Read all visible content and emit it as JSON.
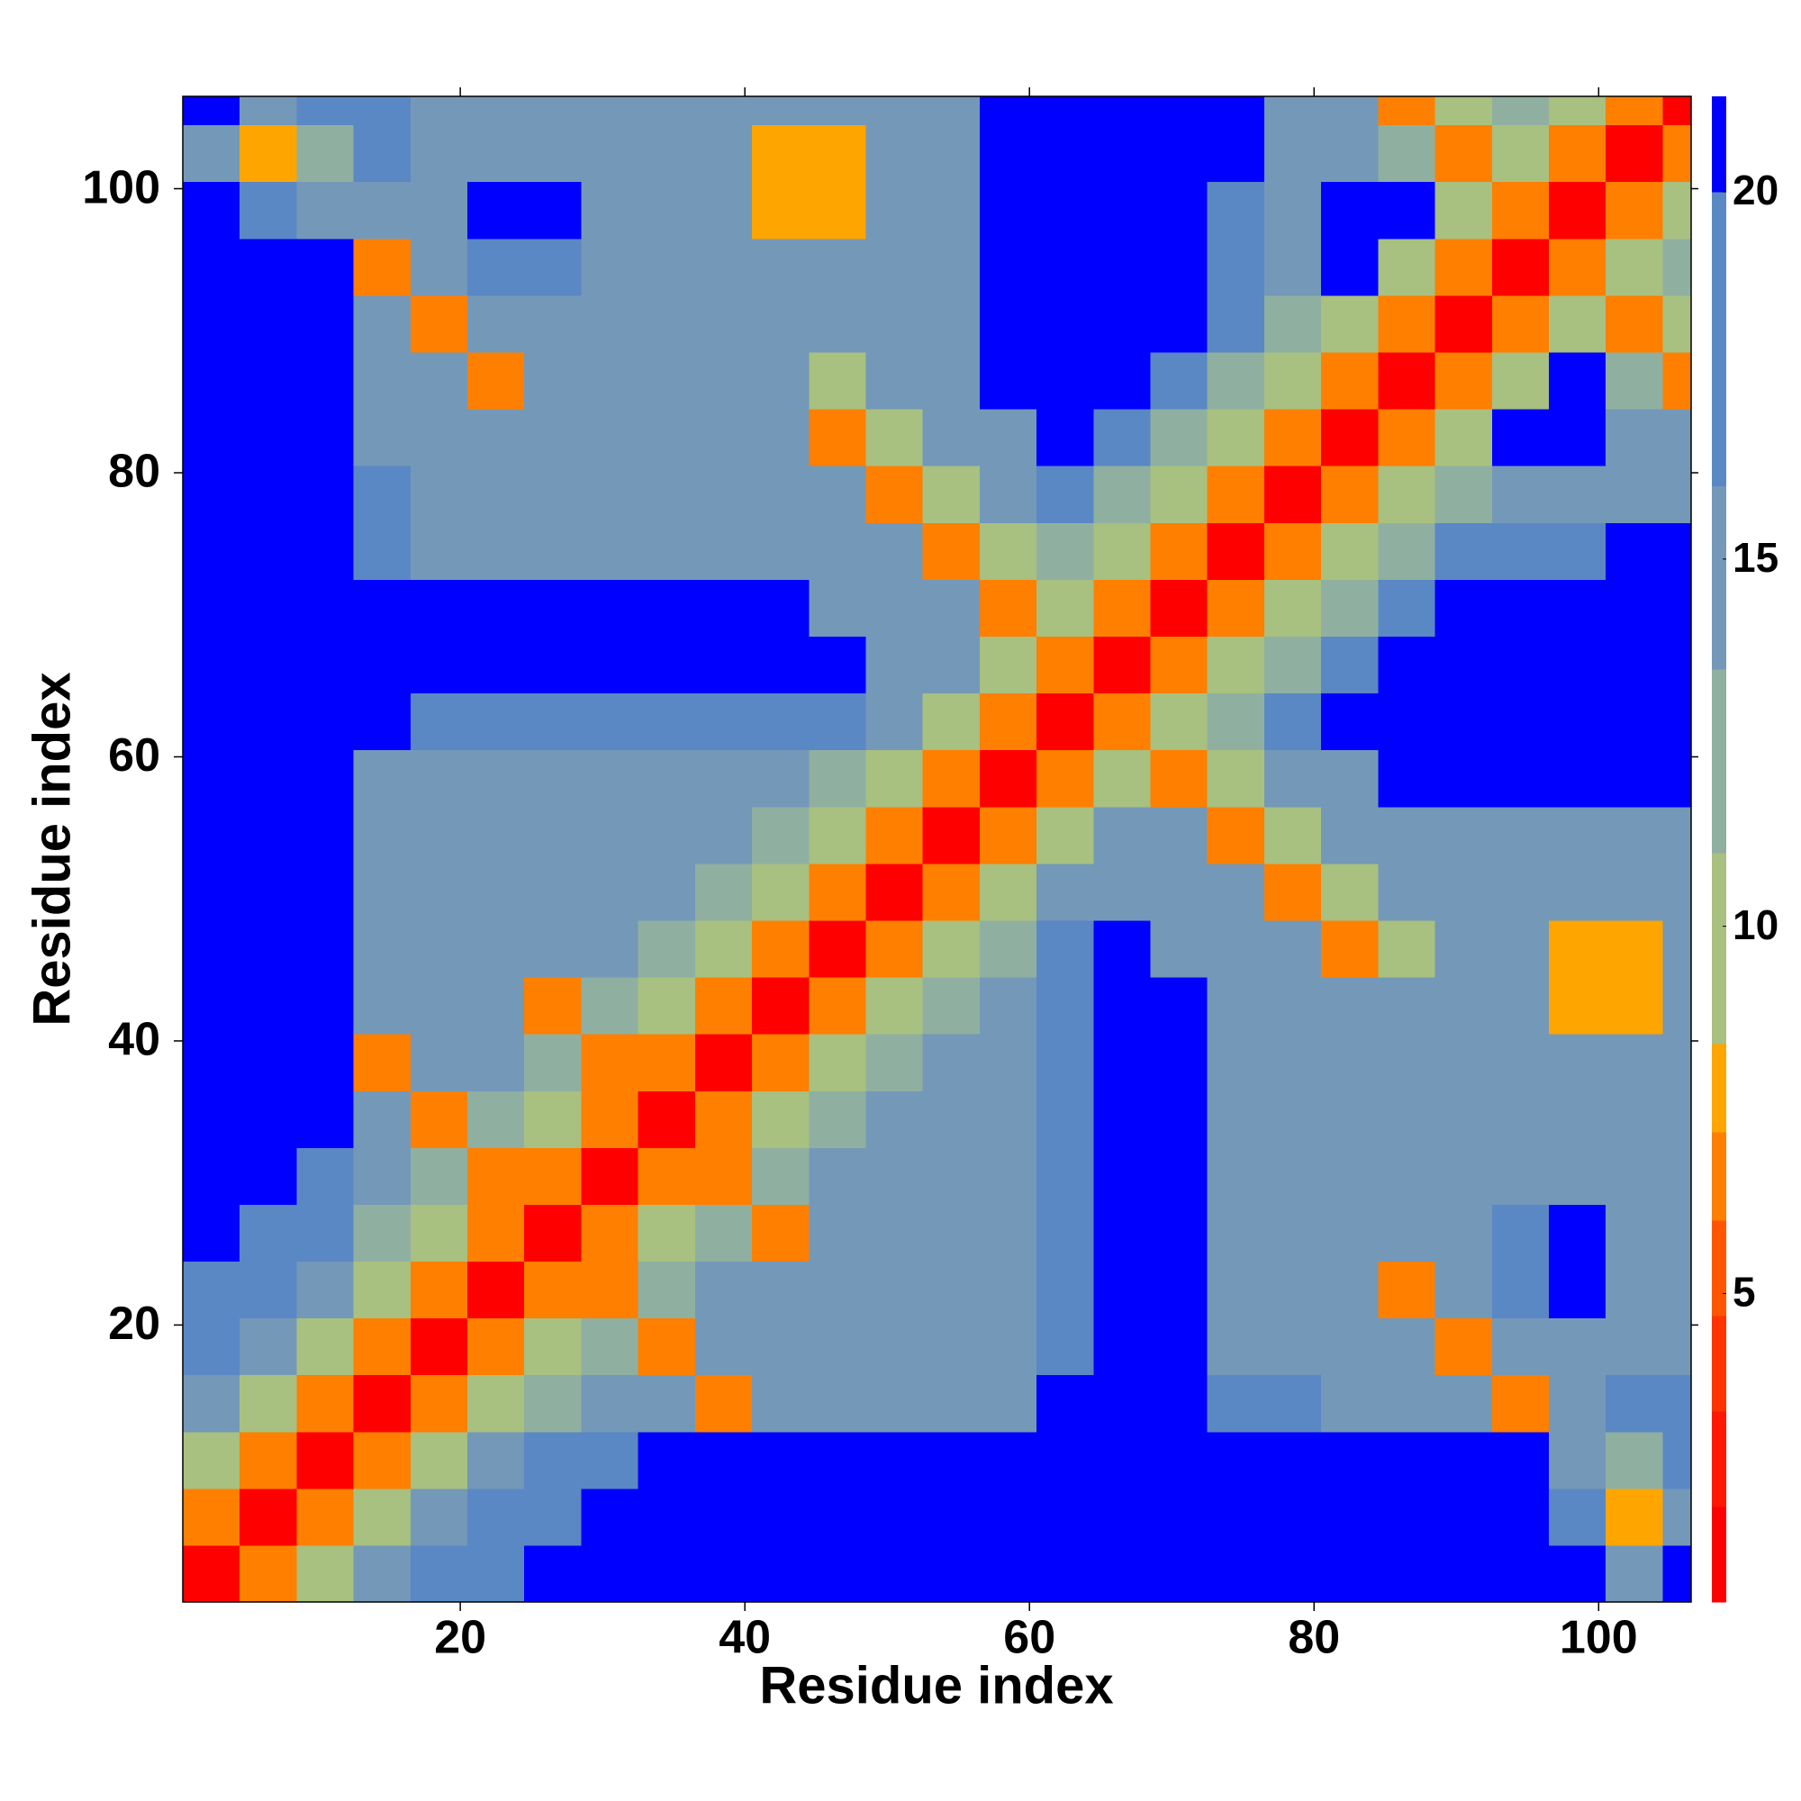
{
  "chart_data": {
    "type": "heatmap",
    "x_label": "Residue index",
    "y_label": "Residue index",
    "x_bins": [
      0.5,
      4.5,
      8.5,
      12.5,
      16.5,
      20.5,
      24.5,
      28.5,
      32.5,
      36.5,
      40.5,
      44.5,
      48.5,
      52.5,
      56.5,
      60.5,
      64.5,
      68.5,
      72.5,
      76.5,
      80.5,
      84.5,
      88.5,
      92.5,
      96.5,
      100.5,
      104.5,
      106.5
    ],
    "y_bins": [
      0.5,
      4.5,
      8.5,
      12.5,
      16.5,
      20.5,
      24.5,
      28.5,
      32.5,
      36.5,
      40.5,
      44.5,
      48.5,
      52.5,
      56.5,
      60.5,
      64.5,
      68.5,
      72.5,
      76.5,
      80.5,
      84.5,
      88.5,
      92.5,
      96.5,
      100.5,
      104.5,
      106.5
    ],
    "xlim": [
      0.5,
      106.5
    ],
    "ylim": [
      0.5,
      106.5
    ],
    "xticks": [
      20,
      40,
      60,
      80,
      100
    ],
    "yticks": [
      20,
      40,
      60,
      80,
      100
    ],
    "values": [
      [
        2,
        6,
        10,
        14,
        17,
        19,
        21,
        21,
        21,
        21,
        21,
        21,
        21,
        21,
        21,
        21,
        21,
        21,
        21,
        21,
        21,
        21,
        21,
        21,
        21,
        14,
        20
      ],
      [
        6,
        2,
        6,
        10,
        14,
        17,
        19,
        21,
        21,
        21,
        21,
        21,
        21,
        21,
        21,
        21,
        21,
        21,
        21,
        21,
        21,
        21,
        21,
        21,
        16,
        8,
        15
      ],
      [
        10,
        6,
        2,
        6,
        10,
        14,
        17,
        19,
        21,
        21,
        21,
        21,
        21,
        21,
        21,
        21,
        21,
        21,
        21,
        21,
        21,
        21,
        21,
        21,
        15,
        13,
        16
      ],
      [
        14,
        10,
        6,
        2,
        6,
        10,
        12,
        14,
        14,
        7,
        14,
        14,
        14,
        14,
        14,
        21,
        21,
        21,
        18,
        18,
        14,
        14,
        14,
        7,
        14,
        16,
        16
      ],
      [
        17,
        14,
        10,
        6,
        2,
        6,
        10,
        12,
        7,
        14,
        14,
        14,
        14,
        14,
        14,
        16,
        21,
        21,
        14,
        14,
        14,
        14,
        7,
        14,
        14,
        14,
        14
      ],
      [
        19,
        17,
        14,
        10,
        6,
        2,
        6,
        7,
        12,
        14,
        14,
        14,
        14,
        14,
        14,
        16,
        21,
        21,
        14,
        14,
        14,
        7,
        14,
        17,
        21,
        14,
        14
      ],
      [
        21,
        19,
        17,
        12,
        10,
        6,
        2,
        6,
        10,
        12,
        7,
        14,
        14,
        14,
        14,
        16,
        21,
        21,
        14,
        14,
        14,
        14,
        14,
        17,
        21,
        14,
        14
      ],
      [
        21,
        21,
        19,
        14,
        12,
        7,
        6,
        2,
        6,
        7,
        12,
        14,
        14,
        14,
        14,
        16,
        21,
        21,
        14,
        14,
        14,
        14,
        14,
        14,
        14,
        14,
        14
      ],
      [
        21,
        21,
        21,
        14,
        7,
        12,
        10,
        6,
        2,
        6,
        10,
        12,
        14,
        14,
        14,
        16,
        21,
        21,
        14,
        14,
        14,
        14,
        14,
        14,
        14,
        14,
        14
      ],
      [
        21,
        21,
        21,
        7,
        14,
        14,
        12,
        7,
        6,
        2,
        6,
        10,
        12,
        14,
        14,
        16,
        21,
        21,
        14,
        14,
        14,
        14,
        14,
        14,
        14,
        14,
        14
      ],
      [
        21,
        21,
        21,
        14,
        14,
        14,
        7,
        12,
        10,
        6,
        2,
        6,
        10,
        12,
        14,
        16,
        21,
        21,
        14,
        14,
        14,
        14,
        14,
        14,
        8,
        8,
        14
      ],
      [
        21,
        21,
        21,
        14,
        14,
        14,
        14,
        14,
        12,
        10,
        6,
        2,
        6,
        10,
        12,
        16,
        21,
        14,
        14,
        14,
        7,
        9,
        14,
        14,
        8,
        8,
        14
      ],
      [
        21,
        21,
        21,
        14,
        14,
        14,
        14,
        14,
        14,
        12,
        10,
        6,
        2,
        6,
        10,
        14,
        14,
        14,
        14,
        7,
        9,
        14,
        14,
        14,
        14,
        14,
        14
      ],
      [
        21,
        21,
        21,
        14,
        14,
        14,
        14,
        14,
        14,
        14,
        12,
        10,
        6,
        2,
        6,
        10,
        14,
        14,
        7,
        9,
        14,
        14,
        14,
        14,
        14,
        14,
        14
      ],
      [
        21,
        21,
        21,
        14,
        14,
        14,
        14,
        14,
        14,
        14,
        14,
        12,
        10,
        6,
        2,
        6,
        10,
        7,
        9,
        15,
        15,
        21,
        21,
        21,
        21,
        21,
        21
      ],
      [
        21,
        21,
        21,
        21,
        16,
        16,
        16,
        16,
        16,
        16,
        16,
        16,
        14,
        10,
        6,
        2,
        6,
        10,
        13,
        17,
        21,
        21,
        21,
        21,
        21,
        21,
        21
      ],
      [
        21,
        21,
        21,
        21,
        21,
        21,
        21,
        21,
        21,
        21,
        21,
        21,
        14,
        14,
        10,
        6,
        2,
        6,
        10,
        13,
        17,
        21,
        21,
        21,
        21,
        21,
        21
      ],
      [
        21,
        21,
        21,
        21,
        21,
        21,
        21,
        21,
        21,
        21,
        21,
        14,
        14,
        14,
        7,
        10,
        6,
        2,
        6,
        10,
        13,
        17,
        21,
        21,
        21,
        21,
        21
      ],
      [
        21,
        21,
        21,
        18,
        14,
        14,
        14,
        14,
        14,
        14,
        14,
        14,
        14,
        7,
        9,
        13,
        10,
        6,
        2,
        6,
        10,
        11,
        17,
        17,
        17,
        20,
        20
      ],
      [
        21,
        21,
        21,
        18,
        14,
        14,
        14,
        14,
        14,
        14,
        14,
        14,
        7,
        9,
        15,
        17,
        13,
        10,
        6,
        2,
        6,
        10,
        11,
        14,
        14,
        14,
        14
      ],
      [
        21,
        21,
        21,
        14,
        14,
        14,
        14,
        14,
        14,
        14,
        14,
        7,
        9,
        14,
        15,
        21,
        17,
        13,
        10,
        6,
        2,
        6,
        10,
        21,
        21,
        14,
        14
      ],
      [
        21,
        21,
        21,
        14,
        14,
        7,
        14,
        14,
        14,
        14,
        14,
        9,
        14,
        14,
        21,
        21,
        21,
        17,
        11,
        10,
        6,
        2,
        6,
        10,
        21,
        11,
        7
      ],
      [
        21,
        21,
        21,
        14,
        7,
        14,
        14,
        14,
        14,
        14,
        14,
        14,
        14,
        14,
        21,
        21,
        21,
        21,
        17,
        11,
        10,
        6,
        2,
        6,
        10,
        7,
        9
      ],
      [
        21,
        21,
        21,
        7,
        14,
        17,
        17,
        14,
        14,
        14,
        14,
        14,
        14,
        14,
        21,
        21,
        21,
        21,
        17,
        14,
        21,
        10,
        6,
        2,
        6,
        9,
        11
      ],
      [
        21,
        16,
        15,
        14,
        14,
        21,
        21,
        14,
        14,
        14,
        8,
        8,
        14,
        14,
        21,
        21,
        21,
        21,
        17,
        14,
        21,
        21,
        10,
        6,
        2,
        6,
        10
      ],
      [
        14,
        8,
        13,
        16,
        14,
        14,
        14,
        14,
        14,
        14,
        8,
        8,
        14,
        14,
        21,
        21,
        21,
        21,
        20,
        14,
        14,
        11,
        7,
        9,
        6,
        2,
        6
      ],
      [
        20,
        15,
        16,
        16,
        14,
        14,
        14,
        14,
        14,
        14,
        14,
        14,
        14,
        14,
        21,
        21,
        21,
        21,
        20,
        14,
        14,
        7,
        9,
        11,
        10,
        6,
        2
      ]
    ],
    "colorbar": {
      "levels": [
        0.8,
        2.1,
        3.4,
        4.7,
        6.0,
        7.2,
        8.4,
        11,
        13.5,
        16,
        20,
        21.3
      ],
      "colors": [
        "#ff0000",
        "#ff1800",
        "#ff3300",
        "#ff5500",
        "#ff7f00",
        "#ffa500",
        "#a8c080",
        "#8fb0a0",
        "#7498b8",
        "#5a88c4",
        "#0000ff"
      ],
      "ticks": [
        5,
        10,
        15,
        20
      ]
    }
  }
}
